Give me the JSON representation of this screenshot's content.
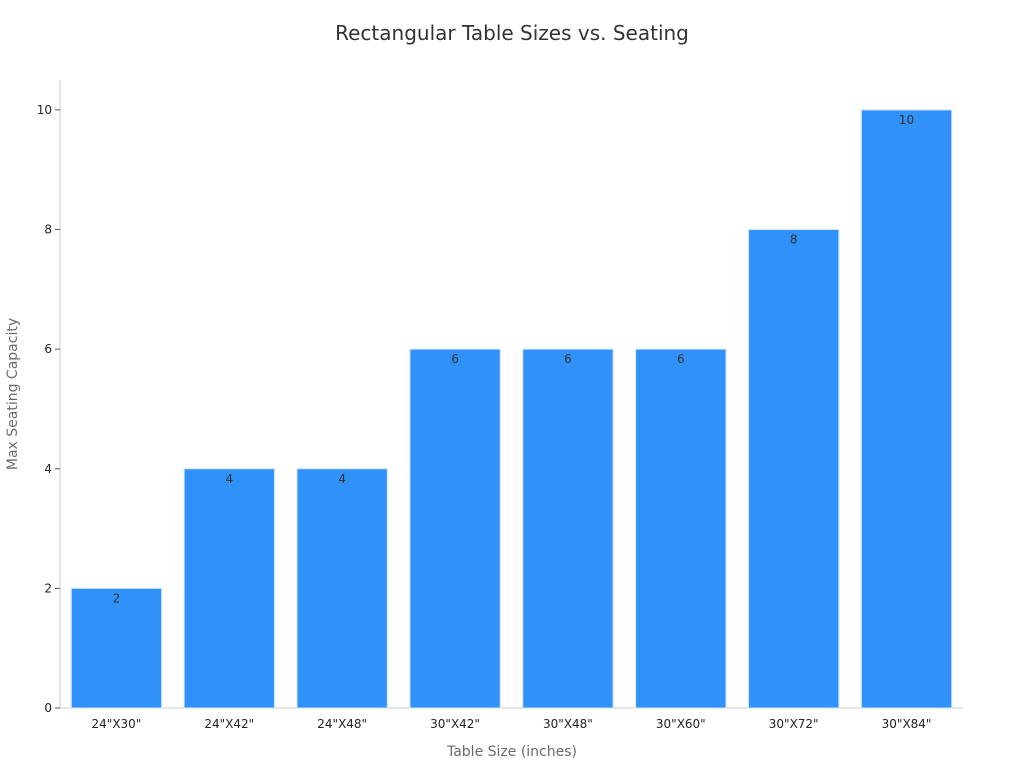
{
  "chart_data": {
    "type": "bar",
    "title": "Rectangular Table Sizes vs. Seating",
    "xlabel": "Table Size (inches)",
    "ylabel": "Max Seating Capacity",
    "categories": [
      "24\"X30\"",
      "24\"X42\"",
      "24\"X48\"",
      "30\"X42\"",
      "30\"X48\"",
      "30\"X60\"",
      "30\"X72\"",
      "30\"X84\""
    ],
    "values": [
      2,
      4,
      4,
      6,
      6,
      6,
      8,
      10
    ],
    "ylim": [
      0,
      10.5
    ],
    "yticks": [
      0,
      2,
      4,
      6,
      8,
      10
    ],
    "grid": false,
    "bar_color": "#3091f8",
    "bar_edge_color": "#cfe3fb",
    "axis_color": "#cccccc",
    "data_labels": true
  }
}
